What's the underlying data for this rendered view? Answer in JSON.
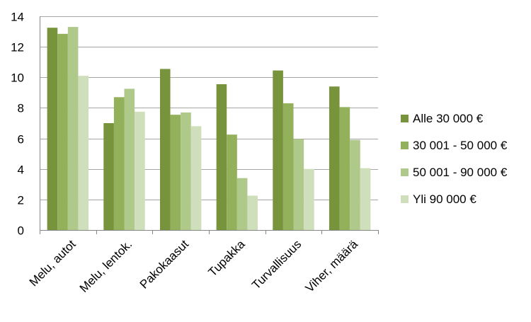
{
  "chart_data": {
    "type": "bar",
    "categories": [
      "Melu, autot",
      "Melu, lentok.",
      "Pakokaasut",
      "Tupakka",
      "Turvallisuus",
      "Viher, määrä"
    ],
    "series": [
      {
        "name": "Alle 30 000 €",
        "color": "#77933c",
        "values": [
          13.25,
          7.0,
          10.55,
          9.55,
          10.45,
          9.4
        ]
      },
      {
        "name": "30 001 - 50 000 €",
        "color": "#92b15a",
        "values": [
          12.85,
          8.7,
          7.55,
          6.25,
          8.3,
          8.05
        ]
      },
      {
        "name": "50 001 - 90 000 €",
        "color": "#aec98a",
        "values": [
          13.3,
          9.25,
          7.7,
          3.4,
          5.95,
          5.9
        ]
      },
      {
        "name": "Yli 90 000 €",
        "color": "#d0dfbb",
        "values": [
          10.1,
          7.75,
          6.8,
          2.25,
          4.0,
          4.05
        ]
      }
    ],
    "ylim": [
      0,
      14
    ],
    "yticks": [
      "0",
      "2",
      "4",
      "6",
      "8",
      "10",
      "12",
      "14"
    ],
    "grid": true,
    "legend": "right",
    "title": "",
    "xlabel": "",
    "ylabel": ""
  }
}
